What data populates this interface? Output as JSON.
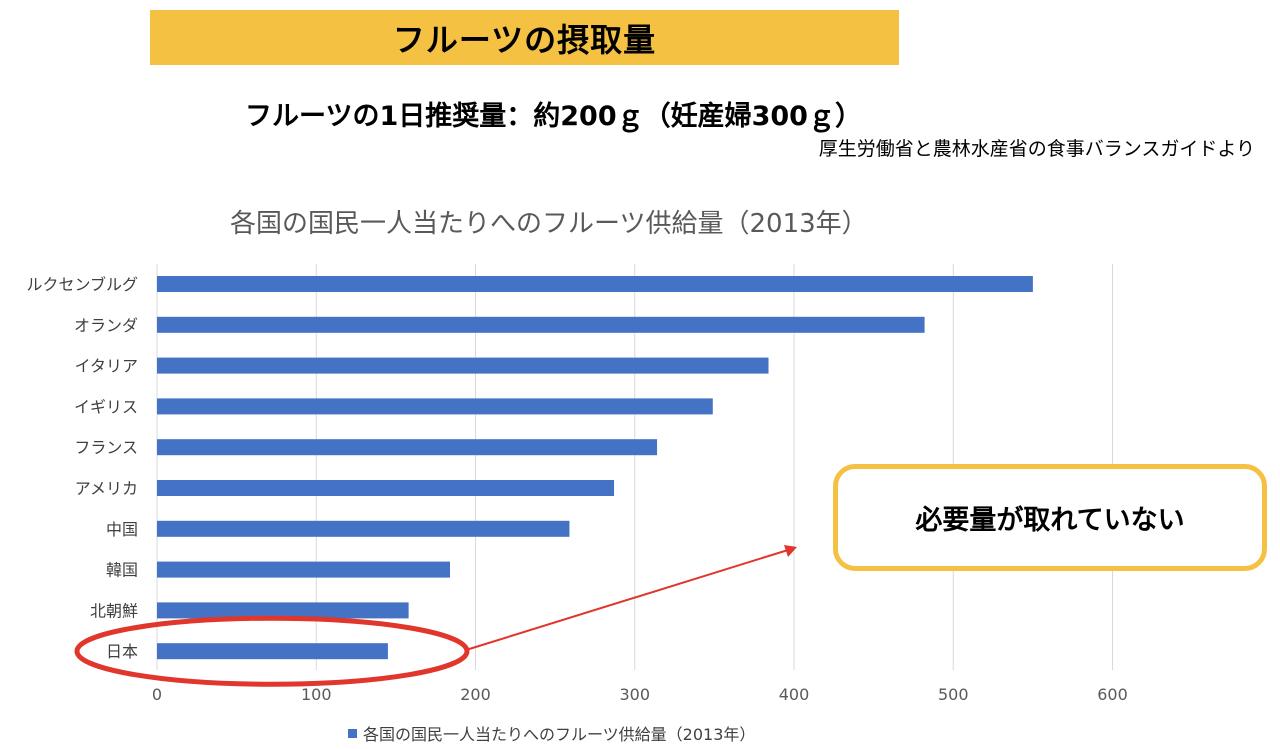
{
  "header": {
    "title": "フルーツの摂取量",
    "subtitle": "フルーツの1日推奨量：約200ｇ（妊産婦300ｇ）",
    "source": "厚生労働省と農林水産省の食事バランスガイドより"
  },
  "callout": {
    "text": "必要量が取れていない"
  },
  "colors": {
    "banner": "#f5c143",
    "bar": "#4472c4",
    "highlight_ellipse": "#e0362c",
    "arrow": "#e0362c"
  },
  "chart_data": {
    "type": "bar",
    "orientation": "horizontal",
    "title": "各国の国民一人当たりへのフルーツ供給量（2013年）",
    "categories": [
      "ルクセンブルグ",
      "オランダ",
      "イタリア",
      "イギリス",
      "フランス",
      "アメリカ",
      "中国",
      "韓国",
      "北朝鮮",
      "日本"
    ],
    "series": [
      {
        "name": "各国の国民一人当たりへのフルーツ供給量（2013年）",
        "values": [
          550,
          482,
          384,
          349,
          314,
          287,
          259,
          184,
          158,
          145
        ]
      }
    ],
    "xlim": [
      0,
      600
    ],
    "xticks": [
      0,
      100,
      200,
      300,
      400,
      500,
      600
    ],
    "grid": true,
    "legend": "bottom",
    "highlight_category": "日本"
  }
}
